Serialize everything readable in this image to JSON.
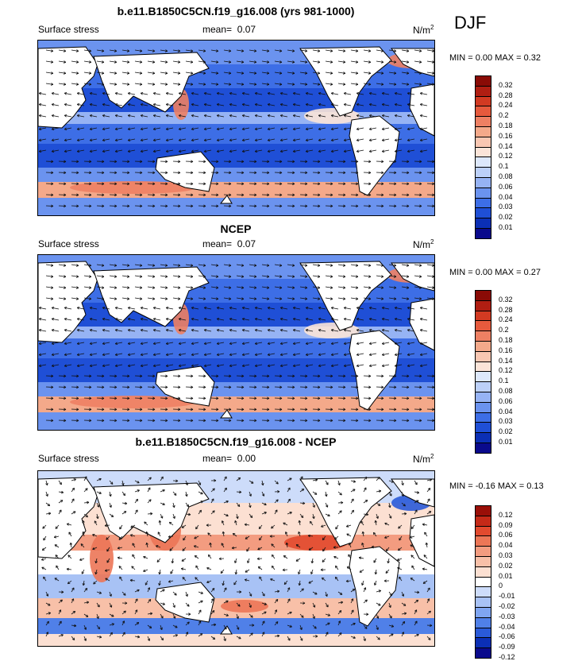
{
  "season": "DJF",
  "units_label": "N/m",
  "units_sup": "2",
  "colors": {
    "pos_scale": [
      "#0a0a8c",
      "#0b2fb5",
      "#1f4fd6",
      "#3d6ee6",
      "#6b93ef",
      "#96b3f4",
      "#bcd0f8",
      "#dde8fb",
      "#fbe4d8",
      "#f9c7b2",
      "#f4a98a",
      "#ee8063",
      "#e65a3d",
      "#d23a22",
      "#b01e12",
      "#8a0b06"
    ],
    "diff_scale": [
      "#0a0a8c",
      "#0b2fb5",
      "#2a5ad8",
      "#5080e8",
      "#7fa5f1",
      "#a8c2f5",
      "#cddcfa",
      "#ffffff",
      "#fce0d2",
      "#f8c0a8",
      "#f39c80",
      "#ec7656",
      "#e24a2e",
      "#c52a18",
      "#9a0f08"
    ]
  },
  "chart_data": [
    {
      "type": "heatmap",
      "title": "b.e11.B1850C5CN.f19_g16.008 (yrs 981-1000)",
      "left_label": "Surface stress",
      "mean_label": "mean=",
      "mean_value": "0.07",
      "min_label": "MIN =",
      "min_value": "0.00",
      "max_label": "MAX =",
      "max_value": "0.32",
      "colorbar_levels": [
        "0.32",
        "0.28",
        "0.24",
        "0.2",
        "0.18",
        "0.16",
        "0.14",
        "0.12",
        "0.1",
        "0.08",
        "0.06",
        "0.04",
        "0.03",
        "0.02",
        "0.01"
      ]
    },
    {
      "type": "heatmap",
      "title": "NCEP",
      "left_label": "Surface stress",
      "mean_label": "mean=",
      "mean_value": "0.07",
      "min_label": "MIN =",
      "min_value": "0.00",
      "max_label": "MAX =",
      "max_value": "0.27",
      "colorbar_levels": [
        "0.32",
        "0.28",
        "0.24",
        "0.2",
        "0.18",
        "0.16",
        "0.14",
        "0.12",
        "0.1",
        "0.08",
        "0.06",
        "0.04",
        "0.03",
        "0.02",
        "0.01"
      ]
    },
    {
      "type": "heatmap",
      "title": "b.e11.B1850C5CN.f19_g16.008 - NCEP",
      "left_label": "Surface stress",
      "mean_label": "mean=",
      "mean_value": "0.00",
      "min_label": "MIN =",
      "min_value": "-0.16",
      "max_label": "MAX =",
      "max_value": "0.13",
      "colorbar_levels": [
        "0.12",
        "0.09",
        "0.06",
        "0.04",
        "0.03",
        "0.02",
        "0.01",
        "0",
        "-0.01",
        "-0.02",
        "-0.03",
        "-0.04",
        "-0.06",
        "-0.09",
        "-0.12"
      ]
    }
  ]
}
